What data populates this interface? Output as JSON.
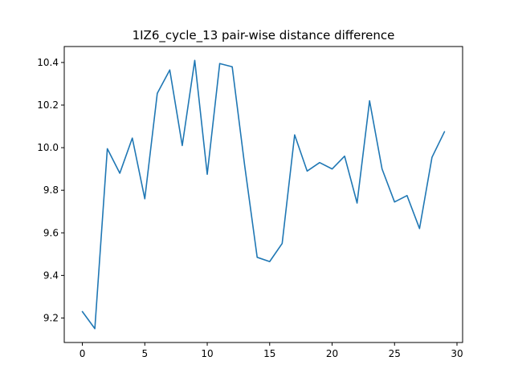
{
  "chart_data": {
    "type": "line",
    "title": "1IZ6_cycle_13 pair-wise distance difference",
    "xlabel": "",
    "ylabel": "",
    "xlim": [
      -1.45,
      30.45
    ],
    "ylim": [
      9.085,
      10.475
    ],
    "x_ticks": [
      0,
      5,
      10,
      15,
      20,
      25,
      30
    ],
    "x_tick_labels": [
      "0",
      "5",
      "10",
      "15",
      "20",
      "25",
      "30"
    ],
    "y_ticks": [
      9.2,
      9.4,
      9.6,
      9.8,
      10.0,
      10.2,
      10.4
    ],
    "y_tick_labels": [
      "9.2",
      "9.4",
      "9.6",
      "9.8",
      "10.0",
      "10.2",
      "10.4"
    ],
    "grid": false,
    "series": [
      {
        "color": "#1f77b4",
        "x": [
          0,
          1,
          2,
          3,
          4,
          5,
          6,
          7,
          8,
          9,
          10,
          11,
          12,
          13,
          14,
          15,
          16,
          17,
          18,
          19,
          20,
          21,
          22,
          23,
          24,
          25,
          26,
          27,
          28,
          29
        ],
        "y": [
          9.23,
          9.15,
          9.995,
          9.88,
          10.045,
          9.76,
          10.255,
          10.365,
          10.01,
          10.41,
          9.875,
          10.395,
          10.38,
          9.915,
          9.485,
          9.465,
          9.55,
          10.06,
          9.89,
          9.93,
          9.9,
          9.96,
          9.74,
          10.22,
          9.9,
          9.745,
          9.775,
          9.62,
          9.955,
          10.075
        ]
      }
    ]
  }
}
